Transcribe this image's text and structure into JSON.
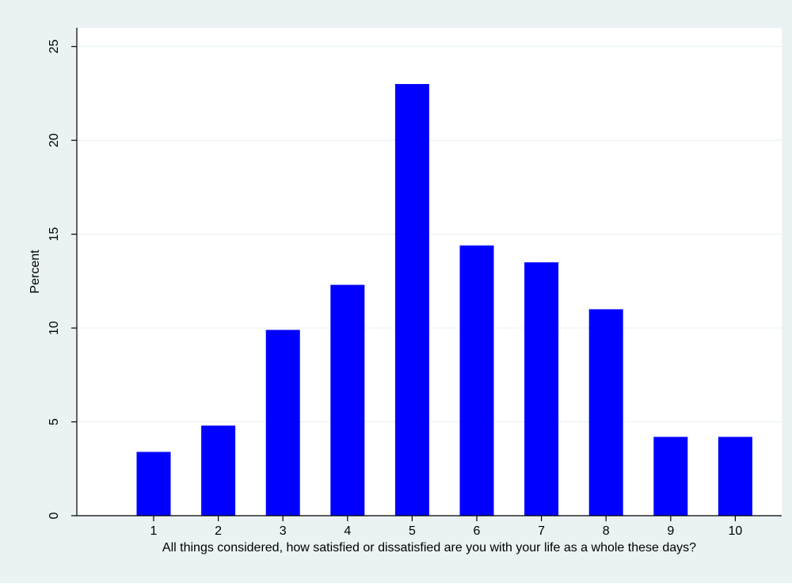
{
  "colors": {
    "outer_background": "#eaf2f3",
    "plot_background": "#ffffff",
    "bar_fill": "#0000ff",
    "grid": "#eaf2f3",
    "axis": "#000000"
  },
  "chart_data": {
    "type": "bar",
    "categories": [
      "1",
      "2",
      "3",
      "4",
      "5",
      "6",
      "7",
      "8",
      "9",
      "10"
    ],
    "values": [
      3.4,
      4.8,
      9.9,
      12.3,
      23.0,
      14.4,
      13.5,
      11.0,
      4.2,
      4.2
    ],
    "xlabel": "All things considered, how satisfied or dissatisfied are you with your life as a whole these days?",
    "ylabel": "Percent",
    "ylim": [
      0,
      26
    ],
    "yticks": [
      0,
      5,
      10,
      15,
      20,
      25
    ],
    "grid": true,
    "legend": "none"
  }
}
